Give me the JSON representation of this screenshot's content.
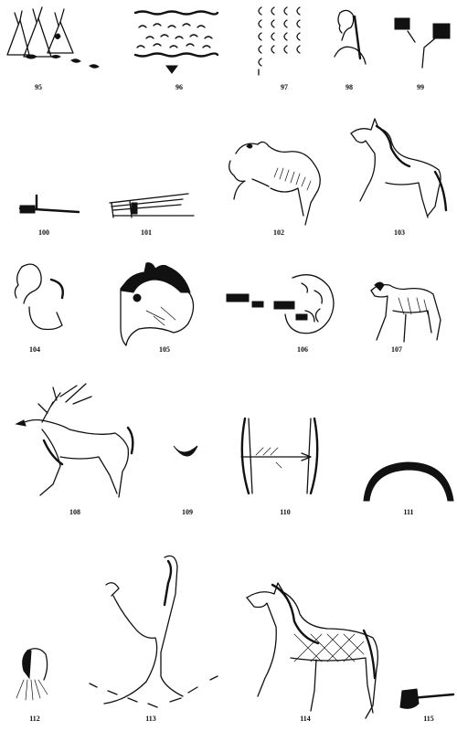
{
  "plate": {
    "figures": [
      {
        "number": "95",
        "icon": "teepee-camp-icon"
      },
      {
        "number": "96",
        "icon": "river-waves-icon"
      },
      {
        "number": "97",
        "icon": "moon-crescents-icon"
      },
      {
        "number": "98",
        "icon": "human-head-icon"
      },
      {
        "number": "99",
        "icon": "flags-icon"
      },
      {
        "number": "100",
        "icon": "gun-icon"
      },
      {
        "number": "101",
        "icon": "bundle-of-sticks-icon"
      },
      {
        "number": "102",
        "icon": "buffalo-icon"
      },
      {
        "number": "103",
        "icon": "horse-icon"
      },
      {
        "number": "104",
        "icon": "bent-figure-icon"
      },
      {
        "number": "105",
        "icon": "horse-head-icon"
      },
      {
        "number": "106",
        "icon": "tracks-and-circle-icon"
      },
      {
        "number": "107",
        "icon": "dog-icon"
      },
      {
        "number": "108",
        "icon": "elk-icon"
      },
      {
        "number": "109",
        "icon": "crescent-moon-icon"
      },
      {
        "number": "110",
        "icon": "bows-and-arrow-icon"
      },
      {
        "number": "111",
        "icon": "rainbow-arc-icon"
      },
      {
        "number": "112",
        "icon": "bust-head-icon"
      },
      {
        "number": "113",
        "icon": "running-man-icon"
      },
      {
        "number": "114",
        "icon": "painted-horse-icon"
      },
      {
        "number": "115",
        "icon": "hatchet-icon"
      }
    ]
  }
}
